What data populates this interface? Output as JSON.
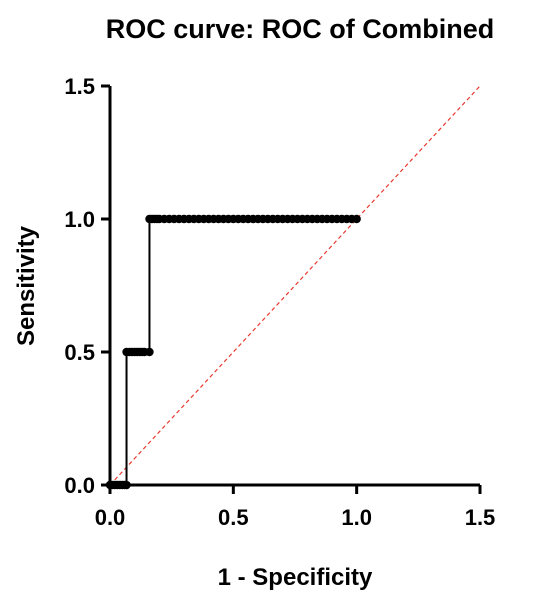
{
  "chart_data": {
    "type": "line",
    "title": "ROC curve: ROC of Combined",
    "xlabel": "1 - Specificity",
    "ylabel": "Sensitivity",
    "xlim": [
      0,
      1.5
    ],
    "ylim": [
      0,
      1.5
    ],
    "xticks": [
      "0.0",
      "0.5",
      "1.0",
      "1.5"
    ],
    "yticks": [
      "0.0",
      "0.5",
      "1.0",
      "1.5"
    ],
    "grid": false,
    "series": [
      {
        "style": "step-with-markers",
        "color": "#000000",
        "points": [
          [
            0.0,
            0.0
          ],
          [
            0.01,
            0.0
          ],
          [
            0.02,
            0.0
          ],
          [
            0.03,
            0.0
          ],
          [
            0.04,
            0.0
          ],
          [
            0.05,
            0.0
          ],
          [
            0.06,
            0.0
          ],
          [
            0.067,
            0.0
          ],
          [
            0.067,
            0.5
          ],
          [
            0.08,
            0.5
          ],
          [
            0.09,
            0.5
          ],
          [
            0.1,
            0.5
          ],
          [
            0.11,
            0.5
          ],
          [
            0.12,
            0.5
          ],
          [
            0.13,
            0.5
          ],
          [
            0.14,
            0.5
          ],
          [
            0.16,
            0.5
          ],
          [
            0.16,
            1.0
          ],
          [
            0.17,
            1.0
          ],
          [
            0.18,
            1.0
          ],
          [
            0.19,
            1.0
          ],
          [
            0.2,
            1.0
          ],
          [
            0.22,
            1.0
          ],
          [
            0.24,
            1.0
          ],
          [
            0.26,
            1.0
          ],
          [
            0.28,
            1.0
          ],
          [
            0.3,
            1.0
          ],
          [
            0.32,
            1.0
          ],
          [
            0.34,
            1.0
          ],
          [
            0.36,
            1.0
          ],
          [
            0.38,
            1.0
          ],
          [
            0.4,
            1.0
          ],
          [
            0.42,
            1.0
          ],
          [
            0.44,
            1.0
          ],
          [
            0.46,
            1.0
          ],
          [
            0.48,
            1.0
          ],
          [
            0.5,
            1.0
          ],
          [
            0.52,
            1.0
          ],
          [
            0.54,
            1.0
          ],
          [
            0.56,
            1.0
          ],
          [
            0.58,
            1.0
          ],
          [
            0.6,
            1.0
          ],
          [
            0.62,
            1.0
          ],
          [
            0.64,
            1.0
          ],
          [
            0.66,
            1.0
          ],
          [
            0.68,
            1.0
          ],
          [
            0.7,
            1.0
          ],
          [
            0.72,
            1.0
          ],
          [
            0.74,
            1.0
          ],
          [
            0.76,
            1.0
          ],
          [
            0.78,
            1.0
          ],
          [
            0.8,
            1.0
          ],
          [
            0.82,
            1.0
          ],
          [
            0.84,
            1.0
          ],
          [
            0.86,
            1.0
          ],
          [
            0.88,
            1.0
          ],
          [
            0.9,
            1.0
          ],
          [
            0.92,
            1.0
          ],
          [
            0.94,
            1.0
          ],
          [
            0.96,
            1.0
          ],
          [
            0.98,
            1.0
          ],
          [
            1.0,
            1.0
          ]
        ]
      },
      {
        "style": "reference-diagonal",
        "color": "#e8392e",
        "points": [
          [
            0.0,
            0.0
          ],
          [
            1.5,
            1.5
          ]
        ]
      }
    ]
  }
}
